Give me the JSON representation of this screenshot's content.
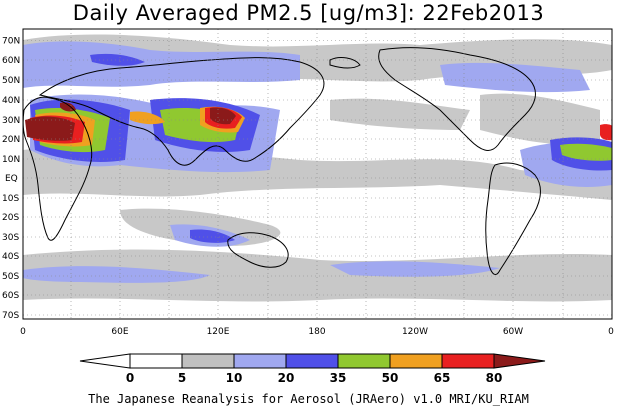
{
  "title": "Daily Averaged PM2.5 [ug/m3]: 22Feb2013",
  "footer": "The Japanese Reanalysis for Aerosol (JRAero) v1.0 MRI/KU_RIAM",
  "map": {
    "lat_ticks": [
      "70N",
      "60N",
      "50N",
      "40N",
      "30N",
      "20N",
      "10N",
      "EQ",
      "10S",
      "20S",
      "30S",
      "40S",
      "50S",
      "60S",
      "70S"
    ],
    "lon_ticks": [
      "0",
      "60E",
      "120E",
      "180",
      "120W",
      "60W",
      "0"
    ]
  },
  "colorbar": {
    "levels": [
      "0",
      "5",
      "10",
      "20",
      "35",
      "50",
      "65",
      "80"
    ],
    "colors": [
      "#ffffff",
      "#c0c0c0",
      "#a0a8f0",
      "#5050e8",
      "#90c830",
      "#f0a020",
      "#e82020",
      "#8b1a1a"
    ]
  }
}
